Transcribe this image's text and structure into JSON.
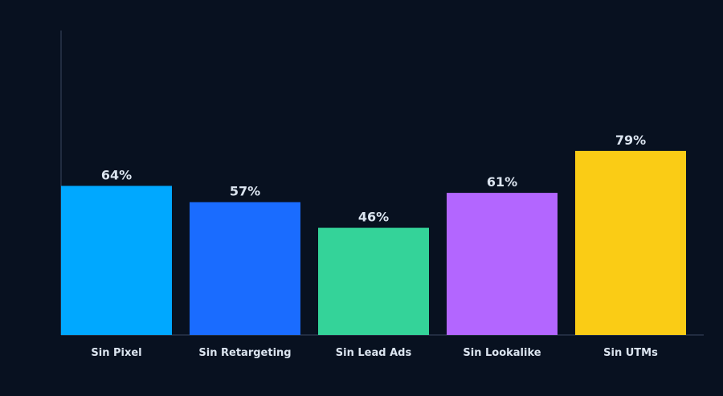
{
  "chart_data": {
    "type": "bar",
    "categories": [
      "Sin Pixel",
      "Sin Retargeting",
      "Sin Lead Ads",
      "Sin Lookalike",
      "Sin UTMs"
    ],
    "values": [
      64,
      57,
      46,
      61,
      79
    ],
    "value_labels": [
      "64%",
      "57%",
      "46%",
      "61%",
      "79%"
    ],
    "colors": [
      "#00a8ff",
      "#1a6cff",
      "#34d399",
      "#b366ff",
      "#facc15"
    ],
    "ylim": [
      0,
      105
    ],
    "grid": false,
    "legend": "none"
  },
  "theme": {
    "background": "#081120",
    "axis_color": "#3a4760",
    "text_color": "#dbe4ef"
  }
}
